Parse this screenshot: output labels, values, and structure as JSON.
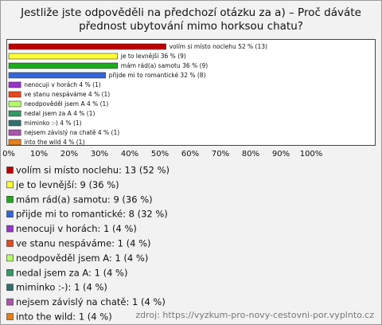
{
  "chart_data": {
    "type": "bar",
    "orientation": "horizontal",
    "title": "Jestliže jste odpověděli na předchozí otázku za a) – Proč dáváte přednost ubytování mimo horksou chatu?",
    "categories": [
      "volím si místo noclehu",
      "je to levnější",
      "mám rád(a) samotu",
      "přijde mi to romantické",
      "nenocuji v horách",
      "ve stanu nespáváme",
      "neodpověděl jsem A",
      "nedal jsem za A",
      "miminko :-)",
      "nejsem závislý na chatě",
      "into the wild"
    ],
    "values": [
      52,
      36,
      36,
      32,
      4,
      4,
      4,
      4,
      4,
      4,
      4
    ],
    "value_labels": [
      "volím si místo noclehu 52 % (13)",
      "je to levnější 36 % (9)",
      "mám rád(a) samotu 36 % (9)",
      "přijde mi to romantické 32 % (8)",
      "nenocuji v horách 4 % (1)",
      "ve stanu nespáváme 4 % (1)",
      "neodpověděl jsem A 4 % (1)",
      "nedal jsem za A 4 % (1)",
      "miminko :-) 4 % (1)",
      "nejsem závislý na chatě 4 % (1)",
      "into the wild 4 % (1)"
    ],
    "colors": [
      "#c00000",
      "#ffff33",
      "#1aad1a",
      "#3366dd",
      "#9933cc",
      "#e8481c",
      "#b3ff66",
      "#339966",
      "#2f7070",
      "#aa55aa",
      "#e6801a"
    ],
    "legend_labels": [
      "volím si místo noclehu: 13 (52 %)",
      "je to levnější: 9 (36 %)",
      "mám rád(a) samotu: 9 (36 %)",
      "přijde mi to romantické: 8 (32 %)",
      "nenocuji v horách: 1 (4 %)",
      "ve stanu nespáváme: 1 (4 %)",
      "neodpověděl jsem A: 1 (4 %)",
      "nedal jsem za A: 1 (4 %)",
      "miminko :-): 1 (4 %)",
      "nejsem závislý na chatě: 1 (4 %)",
      "into the wild: 1 (4 %)"
    ],
    "xlim": [
      0,
      100
    ],
    "xticks": [
      {
        "value": 0,
        "label": "0%"
      },
      {
        "value": 10,
        "label": "10%"
      },
      {
        "value": 20,
        "label": "20%"
      },
      {
        "value": 30,
        "label": "30%"
      },
      {
        "value": 40,
        "label": "40%"
      },
      {
        "value": 50,
        "label": "50%"
      },
      {
        "value": 60,
        "label": "60%"
      },
      {
        "value": 70,
        "label": "70%"
      },
      {
        "value": 80,
        "label": "80%"
      },
      {
        "value": 90,
        "label": "90%"
      },
      {
        "value": 100,
        "label": "100%"
      }
    ],
    "source": "zdroj: https://vyzkum-pro-novy-cestovni-por.vyplnto.cz"
  }
}
